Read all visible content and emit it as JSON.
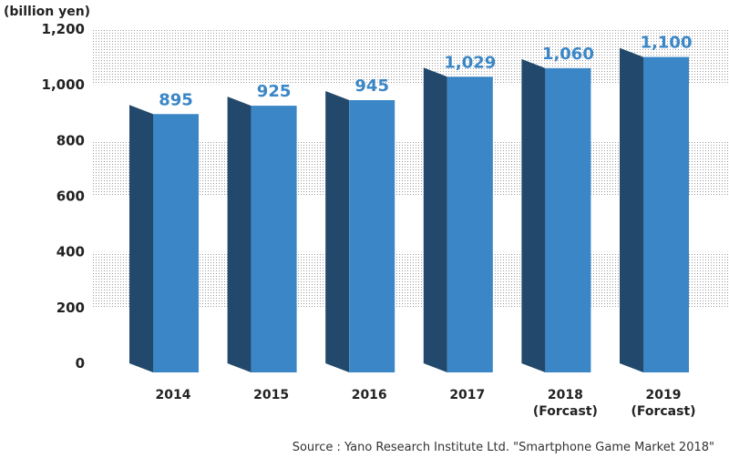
{
  "chart_data": {
    "type": "bar",
    "unit_label": "(billion yen)",
    "categories": [
      {
        "year": "2014",
        "note": ""
      },
      {
        "year": "2015",
        "note": ""
      },
      {
        "year": "2016",
        "note": ""
      },
      {
        "year": "2017",
        "note": ""
      },
      {
        "year": "2018",
        "note": "(Forcast)"
      },
      {
        "year": "2019",
        "note": "(Forcast)"
      }
    ],
    "values": [
      895,
      925,
      945,
      1029,
      1060,
      1100
    ],
    "value_labels": [
      "895",
      "925",
      "945",
      "1,029",
      "1,060",
      "1,100"
    ],
    "ylim": [
      0,
      1200
    ],
    "yticks": [
      0,
      200,
      400,
      600,
      800,
      1000,
      1200
    ],
    "ytick_labels": [
      "0",
      "200",
      "400",
      "600",
      "800",
      "1,000",
      "1,200"
    ],
    "source": "Source : Yano Research Institute Ltd. \"Smartphone Game Market 2018\"",
    "colors": {
      "front": "#3a86c6",
      "side": "#22496b",
      "label": "#3a86c6"
    }
  }
}
